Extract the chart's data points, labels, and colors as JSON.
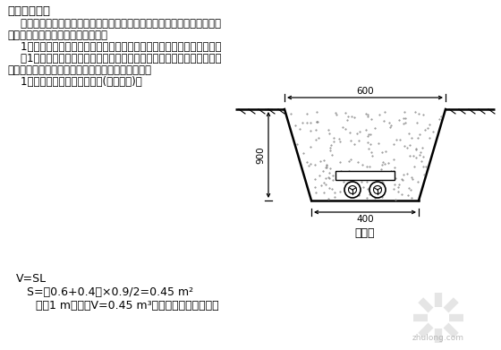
{
  "bg_color": "#ffffff",
  "diagram_label": "电缆沟",
  "formula_line0": "V=SL",
  "formula_line1": "S=（0.6+0.4）×0.9/2=0.45 m²",
  "formula_line2": "即每1 m沟长，V=0.45 m³。沟长按设计图计算。",
  "dim_top": "600",
  "dim_bottom": "400",
  "dim_side": "900",
  "title": "三、电缆敏设",
  "line1": "    电缆敏设方式主要有：直接埋地；穿管敏设；电缆沟内支架上；挂于墙、",
  "line2": "柱的支架上；沿桥架及电缆槽敏设。",
  "line3": "    1、电缆直埋时，需要计算电缆埋设挪填土（石）方、铺砂盖砖工程量。",
  "line4": "    （1）电缆埋设挪填土石方量：电缆沟有设计断面图时，按图计算土石方",
  "line5": "量；电缆沟无设计断面图时，按下式计算土石方量。",
  "line6": "    1）两根电缆以内土石方量为(如图所示)："
}
